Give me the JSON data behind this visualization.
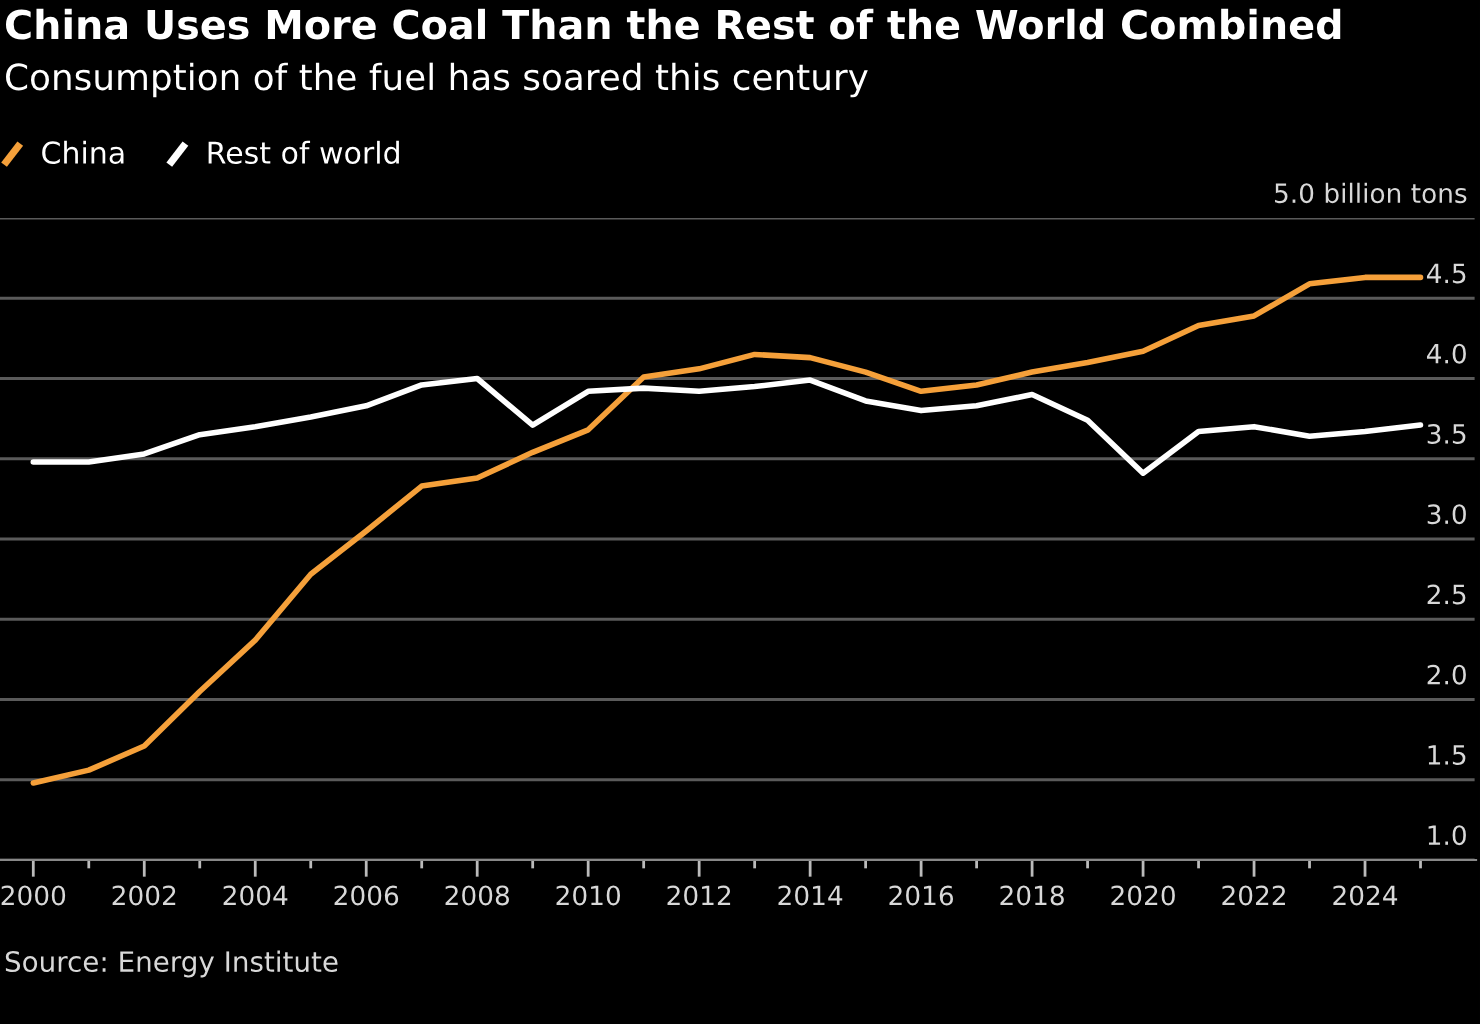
{
  "chart_data": {
    "type": "line",
    "title": "China Uses More Coal Than the Rest of the World Combined",
    "subtitle": "Consumption of the fuel has soared this century",
    "annotations": [
      "Source: Energy Institute"
    ],
    "x": [
      2000,
      2001,
      2002,
      2003,
      2004,
      2005,
      2006,
      2007,
      2008,
      2009,
      2010,
      2011,
      2012,
      2013,
      2014,
      2015,
      2016,
      2017,
      2018,
      2019,
      2020,
      2021,
      2022,
      2023,
      2024,
      2025
    ],
    "series": [
      {
        "name": "China",
        "color": "#f5a03a",
        "values": [
          1.48,
          1.56,
          1.71,
          2.05,
          2.37,
          2.78,
          3.05,
          3.33,
          3.38,
          3.54,
          3.68,
          4.01,
          4.06,
          4.15,
          4.13,
          4.04,
          3.92,
          3.96,
          4.04,
          4.1,
          4.17,
          4.33,
          4.39,
          4.59,
          4.63,
          4.63
        ]
      },
      {
        "name": "Rest of world",
        "color": "#ffffff",
        "values": [
          3.48,
          3.48,
          3.53,
          3.65,
          3.7,
          3.76,
          3.83,
          3.96,
          4.0,
          3.71,
          3.92,
          3.94,
          3.92,
          3.95,
          3.99,
          3.86,
          3.8,
          3.83,
          3.9,
          3.74,
          3.41,
          3.67,
          3.7,
          3.64,
          3.67,
          3.71
        ]
      }
    ],
    "xlim": [
      1999.4,
      2026.0
    ],
    "xticks": [
      2000,
      {
        "value": 2001,
        "label": null
      },
      2002,
      {
        "value": 2003,
        "label": null
      },
      2004,
      {
        "value": 2005,
        "label": null
      },
      2006,
      {
        "value": 2007,
        "label": null
      },
      2008,
      {
        "value": 2009,
        "label": null
      },
      2010,
      {
        "value": 2011,
        "label": null
      },
      2012,
      {
        "value": 2013,
        "label": null
      },
      2014,
      {
        "value": 2015,
        "label": null
      },
      2016,
      {
        "value": 2017,
        "label": null
      },
      2018,
      {
        "value": 2019,
        "label": null
      },
      2020,
      {
        "value": 2021,
        "label": null
      },
      2022,
      {
        "value": 2023,
        "label": null
      },
      2024,
      {
        "value": 2025,
        "label": null
      }
    ],
    "ylim": [
      1,
      5
    ],
    "yticks": [
      {
        "value": 1,
        "label": "1.0"
      },
      1.5,
      {
        "value": 2,
        "label": "2.0"
      },
      2.5,
      {
        "value": 3,
        "label": "3.0"
      },
      3.5,
      {
        "value": 4,
        "label": "4.0"
      },
      4.5,
      {
        "value": 5,
        "label": "5.0 billion tons"
      }
    ],
    "grid": "y",
    "legend": "top left",
    "marker": "none",
    "line_style": "solid"
  }
}
